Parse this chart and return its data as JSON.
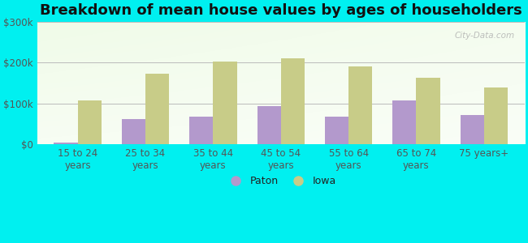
{
  "title": "Breakdown of mean house values by ages of householders",
  "categories": [
    "15 to 24\nyears",
    "25 to 34\nyears",
    "35 to 44\nyears",
    "45 to 54\nyears",
    "55 to 64\nyears",
    "65 to 74\nyears",
    "75 years+"
  ],
  "paton_values": [
    5000,
    62000,
    68000,
    93000,
    68000,
    108000,
    72000
  ],
  "iowa_values": [
    108000,
    172000,
    202000,
    210000,
    190000,
    163000,
    138000
  ],
  "paton_color": "#b399cc",
  "iowa_color": "#c8cc88",
  "ylim": [
    0,
    300000
  ],
  "yticks": [
    0,
    100000,
    200000,
    300000
  ],
  "ytick_labels": [
    "$0",
    "$100k",
    "$200k",
    "$300k"
  ],
  "outer_bg": "#00f0f0",
  "legend_labels": [
    "Paton",
    "Iowa"
  ],
  "watermark": "City-Data.com",
  "bar_width": 0.35,
  "title_fontsize": 13,
  "tick_fontsize": 8.5,
  "legend_fontsize": 9
}
